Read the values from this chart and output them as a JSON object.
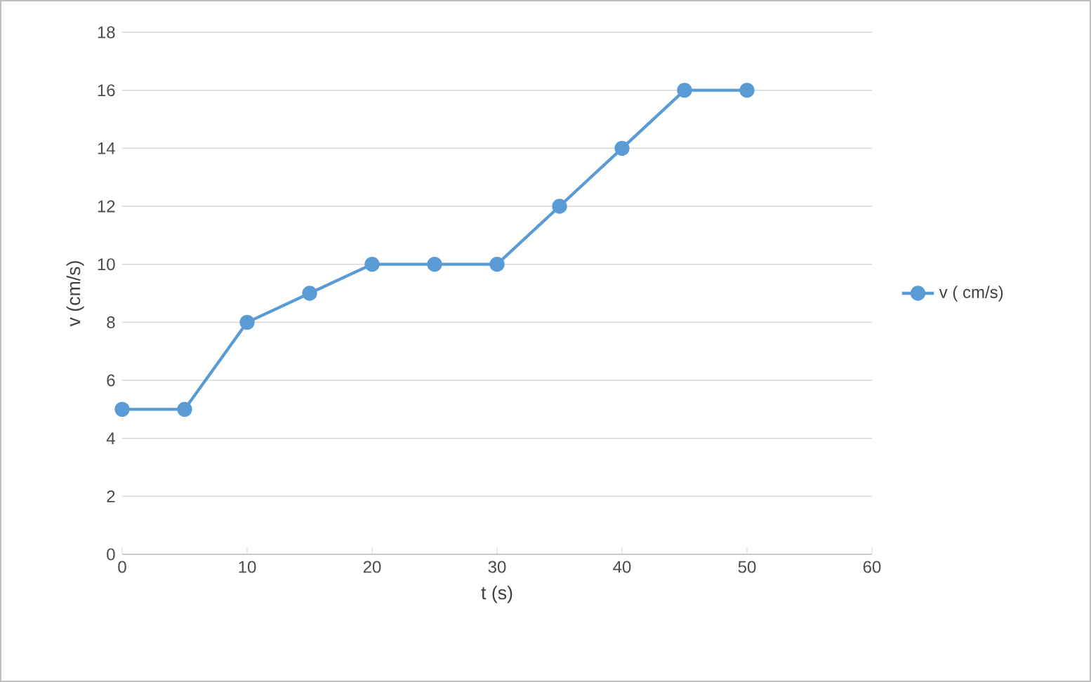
{
  "chart_data": {
    "type": "line",
    "xlabel": "t (s)",
    "ylabel": "v (cm/s)",
    "x": [
      0,
      5,
      10,
      15,
      20,
      25,
      30,
      35,
      40,
      45,
      50
    ],
    "series": [
      {
        "name": "v ( cm/s)",
        "color": "#5b9bd5",
        "values": [
          5,
          5,
          8,
          9,
          10,
          10,
          10,
          12,
          14,
          16,
          16
        ]
      }
    ],
    "xlim": [
      0,
      60
    ],
    "xticks": [
      0,
      10,
      20,
      30,
      40,
      50,
      60
    ],
    "ylim": [
      0,
      18
    ],
    "yticks": [
      0,
      2,
      4,
      6,
      8,
      10,
      12,
      14,
      16,
      18
    ],
    "grid": "y",
    "legend": "right",
    "marker": "circle"
  }
}
